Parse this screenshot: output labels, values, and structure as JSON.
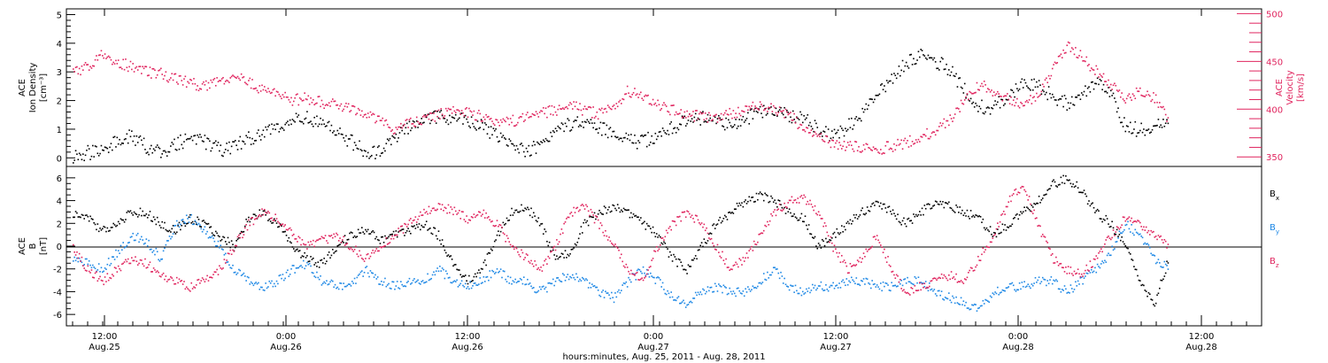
{
  "colors": {
    "black": "#000000",
    "pink": "#e0245e",
    "blue": "#1e88e5",
    "frame": "#000000"
  },
  "chart_data": [
    {
      "type": "scatter",
      "panel": "top",
      "ylabel": [
        "ACE",
        "Ion Density",
        "[cm⁻³]"
      ],
      "ylabel_right": [
        "ACE",
        "Velocity",
        "[km/s]"
      ],
      "ylim": [
        -0.3,
        5.2
      ],
      "ylim_right": [
        340,
        505
      ],
      "yticks": [
        "0",
        "1",
        "2",
        "3",
        "4",
        "5"
      ],
      "yticks_right": [
        "350",
        "400",
        "450",
        "500"
      ],
      "grid": false,
      "series": [
        {
          "axis": "left",
          "color": "#000000",
          "x": [
            0,
            1,
            2,
            3,
            4,
            5,
            6,
            7,
            8,
            9,
            10,
            11,
            12,
            13,
            14,
            15,
            16,
            17,
            18,
            19,
            20,
            21,
            22,
            23,
            24,
            25,
            26,
            27,
            28,
            29,
            30,
            31,
            32,
            33,
            34,
            35,
            36,
            37,
            38,
            39,
            40,
            41,
            42,
            43,
            44,
            45,
            46,
            47,
            48,
            49,
            50,
            51,
            52,
            53,
            54,
            55,
            56,
            57,
            58,
            59,
            60,
            61,
            62,
            63,
            64,
            65,
            66,
            67,
            68,
            69,
            70,
            71,
            72,
            73,
            74,
            75
          ],
          "y": [
            0.1,
            0.2,
            0.3,
            0.6,
            0.8,
            0.4,
            0.2,
            0.5,
            0.7,
            0.6,
            0.3,
            0.4,
            0.7,
            0.9,
            1.1,
            1.3,
            1.4,
            1.2,
            0.9,
            0.6,
            0.2,
            0.2,
            0.7,
            1.1,
            1.3,
            1.5,
            1.4,
            1.3,
            1.1,
            0.8,
            0.5,
            0.3,
            0.4,
            0.9,
            1.2,
            1.3,
            1.1,
            0.8,
            0.6,
            0.6,
            0.8,
            1.1,
            1.3,
            1.4,
            1.3,
            1.2,
            1.4,
            1.6,
            1.6,
            1.5,
            1.4,
            1.0,
            0.8,
            1.1,
            1.6,
            2.2,
            2.8,
            3.3,
            3.6,
            3.4,
            3.1,
            2.4,
            1.8,
            1.8,
            2.2,
            2.6,
            2.5,
            2.2,
            1.9,
            2.2,
            2.7,
            2.3,
            1.1,
            1.0,
            1.1,
            1.3
          ]
        },
        {
          "axis": "right",
          "color": "#e0245e",
          "x": [
            0,
            1,
            2,
            3,
            4,
            5,
            6,
            7,
            8,
            9,
            10,
            11,
            12,
            13,
            14,
            15,
            16,
            17,
            18,
            19,
            20,
            21,
            22,
            23,
            24,
            25,
            26,
            27,
            28,
            29,
            30,
            31,
            32,
            33,
            34,
            35,
            36,
            37,
            38,
            39,
            40,
            41,
            42,
            43,
            44,
            45,
            46,
            47,
            48,
            49,
            50,
            51,
            52,
            53,
            54,
            55,
            56,
            57,
            58,
            59,
            60,
            61,
            62,
            63,
            64,
            65,
            66,
            67,
            68,
            69,
            70,
            71,
            72,
            73,
            74,
            75
          ],
          "y": [
            440,
            445,
            460,
            450,
            445,
            440,
            438,
            432,
            428,
            425,
            430,
            435,
            428,
            420,
            415,
            410,
            412,
            408,
            405,
            400,
            395,
            388,
            380,
            385,
            390,
            395,
            400,
            398,
            392,
            385,
            388,
            392,
            396,
            400,
            404,
            400,
            395,
            405,
            420,
            412,
            404,
            400,
            396,
            392,
            390,
            396,
            400,
            405,
            400,
            395,
            380,
            370,
            365,
            362,
            360,
            358,
            362,
            366,
            372,
            378,
            390,
            410,
            426,
            420,
            412,
            405,
            415,
            440,
            468,
            455,
            440,
            425,
            412,
            420,
            412,
            390
          ]
        }
      ]
    },
    {
      "type": "scatter",
      "panel": "bottom",
      "ylabel": [
        "ACE",
        "B",
        "[nT]"
      ],
      "ylim": [
        -7,
        7
      ],
      "yticks": [
        "-6",
        "-4",
        "-2",
        "0",
        "2",
        "4",
        "6"
      ],
      "grid": false,
      "legend_position": "right",
      "legend": [
        "Bx",
        "By",
        "Bz"
      ],
      "xticks": [
        {
          "top": "12:00",
          "bottom": "Aug.25"
        },
        {
          "top": "0:00",
          "bottom": "Aug.26"
        },
        {
          "top": "12:00",
          "bottom": "Aug.26"
        },
        {
          "top": "0:00",
          "bottom": "Aug.27"
        },
        {
          "top": "12:00",
          "bottom": "Aug.27"
        },
        {
          "top": "0:00",
          "bottom": "Aug.28"
        },
        {
          "top": "12:00",
          "bottom": "Aug.28"
        }
      ],
      "xlabel": "hours:minutes, Aug. 25, 2011 - Aug. 28, 2011",
      "series": [
        {
          "name": "Bx",
          "color": "#000000",
          "x": [
            0,
            1,
            2,
            3,
            4,
            5,
            6,
            7,
            8,
            9,
            10,
            11,
            12,
            13,
            14,
            15,
            16,
            17,
            18,
            19,
            20,
            21,
            22,
            23,
            24,
            25,
            26,
            27,
            28,
            29,
            30,
            31,
            32,
            33,
            34,
            35,
            36,
            37,
            38,
            39,
            40,
            41,
            42,
            43,
            44,
            45,
            46,
            47,
            48,
            49,
            50,
            51,
            52,
            53,
            54,
            55,
            56,
            57,
            58,
            59,
            60,
            61,
            62,
            63,
            64,
            65,
            66,
            67,
            68,
            69,
            70,
            71,
            72,
            73,
            74,
            75
          ],
          "y": [
            3,
            2.5,
            1.5,
            2,
            3,
            3,
            2,
            1.5,
            2.5,
            2,
            1,
            0,
            2.5,
            3,
            2,
            0,
            -1,
            -1.5,
            0,
            1,
            1.5,
            0.5,
            1,
            1.5,
            2,
            1,
            -1.5,
            -3,
            -2,
            1,
            3,
            3.5,
            2,
            -1,
            -0.5,
            2,
            3,
            3.5,
            3,
            2,
            1,
            -1,
            -2,
            0,
            2,
            3,
            4,
            4.5,
            4,
            3,
            2.5,
            0,
            1,
            2,
            3,
            4,
            3,
            2,
            3,
            4,
            3.5,
            3,
            2.5,
            1,
            2,
            3,
            4,
            5.5,
            6,
            5,
            3,
            2,
            0,
            -3,
            -5,
            -1
          ]
        },
        {
          "name": "By",
          "color": "#1e88e5",
          "x": [
            0,
            1,
            2,
            3,
            4,
            5,
            6,
            7,
            8,
            9,
            10,
            11,
            12,
            13,
            14,
            15,
            16,
            17,
            18,
            19,
            20,
            21,
            22,
            23,
            24,
            25,
            26,
            27,
            28,
            29,
            30,
            31,
            32,
            33,
            34,
            35,
            36,
            37,
            38,
            39,
            40,
            41,
            42,
            43,
            44,
            45,
            46,
            47,
            48,
            49,
            50,
            51,
            52,
            53,
            54,
            55,
            56,
            57,
            58,
            59,
            60,
            61,
            62,
            63,
            64,
            65,
            66,
            67,
            68,
            69,
            70,
            71,
            72,
            73,
            74,
            75
          ],
          "y": [
            -1,
            -1.5,
            -2,
            -0.5,
            1,
            0.5,
            -1,
            2,
            2.5,
            1.5,
            0,
            -2,
            -3,
            -3.5,
            -3,
            -2,
            -1.5,
            -3,
            -3.5,
            -3.5,
            -2,
            -3,
            -3.5,
            -3,
            -3,
            -2,
            -3,
            -3.5,
            -3,
            -2,
            -3,
            -3,
            -4,
            -3,
            -2.5,
            -3,
            -4,
            -4.5,
            -3,
            -2,
            -3,
            -4.5,
            -5,
            -4,
            -3.5,
            -4,
            -4,
            -3,
            -2,
            -3.5,
            -4,
            -3.5,
            -3.5,
            -3,
            -3,
            -3.5,
            -3.5,
            -3,
            -3,
            -4,
            -4.5,
            -5,
            -5.5,
            -4,
            -3.5,
            -3.5,
            -3,
            -3,
            -4,
            -3,
            -2,
            -0.5,
            2,
            1,
            -1,
            -2
          ]
        },
        {
          "name": "Bz",
          "color": "#e0245e",
          "x": [
            0,
            1,
            2,
            3,
            4,
            5,
            6,
            7,
            8,
            9,
            10,
            11,
            12,
            13,
            14,
            15,
            16,
            17,
            18,
            19,
            20,
            21,
            22,
            23,
            24,
            25,
            26,
            27,
            28,
            29,
            30,
            31,
            32,
            33,
            34,
            35,
            36,
            37,
            38,
            39,
            40,
            41,
            42,
            43,
            44,
            45,
            46,
            47,
            48,
            49,
            50,
            51,
            52,
            53,
            54,
            55,
            56,
            57,
            58,
            59,
            60,
            61,
            62,
            63,
            64,
            65,
            66,
            67,
            68,
            69,
            70,
            71,
            72,
            73,
            74,
            75
          ],
          "y": [
            0,
            -2,
            -3,
            -2,
            -1,
            -1.5,
            -2.5,
            -3,
            -3.5,
            -3,
            -2,
            0,
            2,
            3,
            2.5,
            1,
            0,
            0.5,
            1,
            0,
            -1,
            0,
            1,
            2,
            3,
            3.5,
            3.2,
            2.5,
            3,
            2,
            0,
            -1,
            -2,
            0,
            3,
            3.5,
            2,
            0,
            -2,
            -3,
            0,
            2,
            3,
            2,
            0,
            -2,
            -1,
            1,
            3,
            4,
            4.3,
            3,
            0,
            -2,
            -1,
            1,
            -2,
            -4,
            -3.5,
            -3,
            -2.5,
            -3,
            -1,
            1,
            4,
            5.5,
            2,
            -1,
            -2,
            -2.5,
            -1,
            1,
            2.5,
            2,
            1,
            0
          ]
        }
      ]
    }
  ]
}
